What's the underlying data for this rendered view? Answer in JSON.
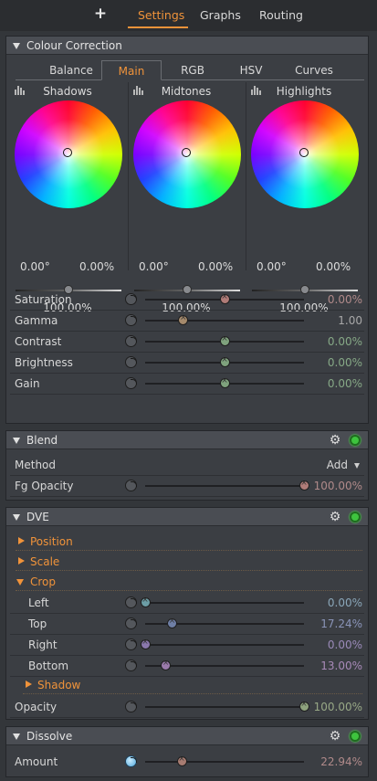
{
  "topbar": {
    "add_label": "+",
    "tabs": [
      {
        "label": "Settings",
        "active": true
      },
      {
        "label": "Graphs",
        "active": false
      },
      {
        "label": "Routing",
        "active": false
      }
    ]
  },
  "colour_correction": {
    "title": "Colour Correction",
    "tabs": [
      {
        "label": "Balance",
        "active": false
      },
      {
        "label": "Main",
        "active": true
      },
      {
        "label": "RGB",
        "active": false
      },
      {
        "label": "HSV",
        "active": false
      },
      {
        "label": "Curves",
        "active": false
      }
    ],
    "wheels": [
      {
        "title": "Shadows",
        "angle": "0.00°",
        "amount": "0.00%",
        "luminance": "100.00%",
        "luminance_fraction": 0.5
      },
      {
        "title": "Midtones",
        "angle": "0.00°",
        "amount": "0.00%",
        "luminance": "100.00%",
        "luminance_fraction": 0.5
      },
      {
        "title": "Highlights",
        "angle": "0.00°",
        "amount": "0.00%",
        "luminance": "100.00%",
        "luminance_fraction": 0.5
      }
    ],
    "params": [
      {
        "label": "Saturation",
        "value": "0.00%",
        "fraction": 0.5,
        "knob_color": "#b07c78",
        "value_color": "#b08a8a"
      },
      {
        "label": "Gamma",
        "value": "1.00",
        "fraction": 0.24,
        "knob_color": "#a58a6c",
        "value_color": "#a8a8a8"
      },
      {
        "label": "Contrast",
        "value": "0.00%",
        "fraction": 0.5,
        "knob_color": "#7fa27d",
        "value_color": "#86a886"
      },
      {
        "label": "Brightness",
        "value": "0.00%",
        "fraction": 0.5,
        "knob_color": "#7fa27d",
        "value_color": "#86a886"
      },
      {
        "label": "Gain",
        "value": "0.00%",
        "fraction": 0.5,
        "knob_color": "#7fa27d",
        "value_color": "#86a886"
      }
    ]
  },
  "blend": {
    "title": "Blend",
    "method_label": "Method",
    "method_value": "Add",
    "fg_opacity": {
      "label": "Fg Opacity",
      "value": "100.00%",
      "fraction": 1.0,
      "knob_color": "#b07c78",
      "value_color": "#b08a8a"
    }
  },
  "dve": {
    "title": "DVE",
    "groups": [
      {
        "label": "Position",
        "expanded": false
      },
      {
        "label": "Scale",
        "expanded": false
      },
      {
        "label": "Crop",
        "expanded": true
      }
    ],
    "crop": [
      {
        "label": "Left",
        "value": "0.00%",
        "fraction": 0.0,
        "knob_color": "#6c9ea6",
        "value_color": "#8aa6b8"
      },
      {
        "label": "Top",
        "value": "17.24%",
        "fraction": 0.17,
        "knob_color": "#6f7fa6",
        "value_color": "#8a94b8"
      },
      {
        "label": "Right",
        "value": "0.00%",
        "fraction": 0.0,
        "knob_color": "#8a78ad",
        "value_color": "#9a8ab8"
      },
      {
        "label": "Bottom",
        "value": "13.00%",
        "fraction": 0.13,
        "knob_color": "#9b7aab",
        "value_color": "#a88ab8"
      }
    ],
    "shadow": {
      "label": "Shadow",
      "expanded": false
    },
    "opacity": {
      "label": "Opacity",
      "value": "100.00%",
      "fraction": 1.0,
      "knob_color": "#8ea27d",
      "value_color": "#98a886"
    }
  },
  "dissolve": {
    "title": "Dissolve",
    "amount": {
      "label": "Amount",
      "value": "22.94%",
      "fraction": 0.23,
      "knob_color": "#a87c72",
      "value_color": "#b08a8a"
    }
  }
}
